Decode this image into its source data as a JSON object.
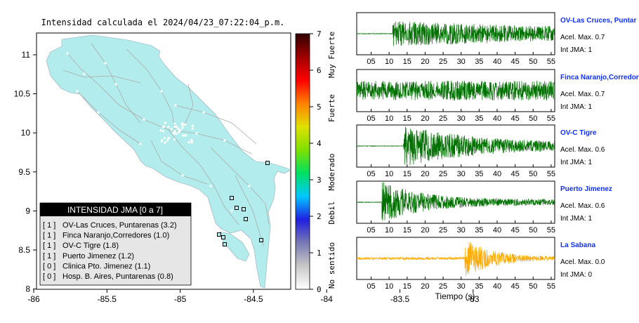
{
  "map": {
    "title": "Intensidad calculada el 2024/04/23_07:22:04_p.m.",
    "x_ticks": [
      "-86",
      "-85.5",
      "-85",
      "-84.5",
      "-84",
      "-83.5",
      "-83"
    ],
    "y_ticks": [
      "11",
      "10.5",
      "10",
      "9.5",
      "9",
      "8.5",
      "8"
    ],
    "xlim": [
      -86,
      -83.5
    ],
    "ylim": [
      8,
      11.3
    ],
    "land_color": "#b3ecec",
    "legend": {
      "title": "INTENSIDAD JMA [0 a 7]",
      "entries": [
        {
          "intensity": "[ 1 ]",
          "station": "OV-Las Cruces, Puntarenas (3.2)"
        },
        {
          "intensity": "[ 1 ]",
          "station": "Finca Naranjo,Corredores (1.0)"
        },
        {
          "intensity": "[ 1 ]",
          "station": "OV-C Tigre (1.8)"
        },
        {
          "intensity": "[ 1 ]",
          "station": "Puerto Jimenez (1.2)"
        },
        {
          "intensity": "[ 0 ]",
          "station": "Clinica Pto. Jimenez (1.1)"
        },
        {
          "intensity": "[ 0 ]",
          "station": "Hosp. B. Aires, Puntarenas (0.8)"
        }
      ]
    }
  },
  "colorbar": {
    "ticks": [
      "7",
      "6",
      "5",
      "4",
      "3",
      "2",
      "1",
      "0"
    ],
    "labels": [
      "Muy Fuerte",
      "Fuerte",
      "Moderado",
      "Debil",
      "No sentido"
    ],
    "colors": [
      "#ffffff",
      "#c8c8c8",
      "#7878b4",
      "#2020e0",
      "#00c8ff",
      "#00e060",
      "#80e000",
      "#e0e000",
      "#ff8000",
      "#ff0000",
      "#a00000",
      "#300000"
    ]
  },
  "chart_data": {
    "type": "line",
    "xlabel": "Tiempo (s)",
    "x_ticks": [
      "05",
      "10",
      "15",
      "20",
      "25",
      "30",
      "35",
      "40",
      "45",
      "50",
      "55"
    ],
    "xlim": [
      1,
      56
    ],
    "series": [
      {
        "name": "OV-Las Cruces, Puntar",
        "accel": "Acel. Max. 0.7",
        "jma": "Int JMA: 1",
        "color": "#007000",
        "onset": 11,
        "decay": 0.0,
        "peak": 0.9
      },
      {
        "name": "Finca Naranjo,Corredor",
        "accel": "Acel. Max. 0.7",
        "jma": "Int JMA: 1",
        "color": "#007000",
        "onset": 1,
        "decay": 0.0,
        "peak": 0.75
      },
      {
        "name": "OV-C Tigre",
        "accel": "Acel. Max. 0.6",
        "jma": "Int JMA: 1",
        "color": "#007000",
        "onset": 14,
        "decay": 0.05,
        "peak": 1.0
      },
      {
        "name": "Puerto Jimenez",
        "accel": "Acel. Max. 0.6",
        "jma": "Int JMA: 1",
        "color": "#007000",
        "onset": 8,
        "decay": 0.09,
        "peak": 1.0
      },
      {
        "name": "La Sabana",
        "accel": "Acel. Max. 0.0",
        "jma": "Int JMA: 0",
        "color": "#ffaa00",
        "onset": 31,
        "decay": 0.12,
        "peak": 1.0
      }
    ]
  }
}
